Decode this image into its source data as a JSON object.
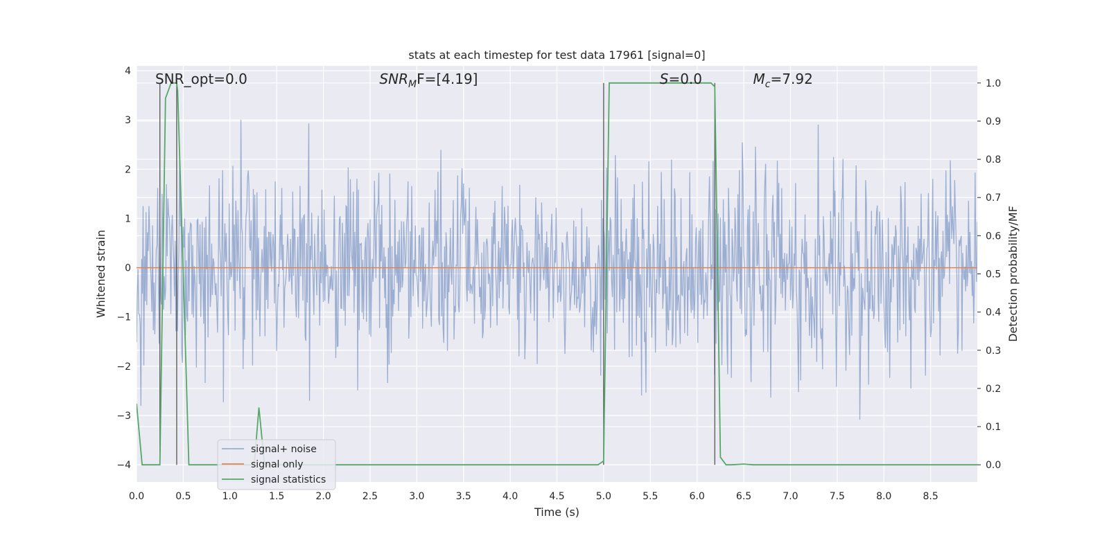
{
  "chart_data": {
    "type": "line",
    "title": "stats at each timestep for test data 17961 [signal=0]",
    "xlabel": "Time (s)",
    "ylabel": "Whitened strain",
    "ylabel_right": "Detection probability/MF",
    "xlim": [
      0.0,
      9.0
    ],
    "ylim": [
      -4.35,
      4.1
    ],
    "ylim_right": [
      -0.045,
      1.045
    ],
    "x_ticks": [
      0.0,
      0.5,
      1.0,
      1.5,
      2.0,
      2.5,
      3.0,
      3.5,
      4.0,
      4.5,
      5.0,
      5.5,
      6.0,
      6.5,
      7.0,
      7.5,
      8.0,
      8.5
    ],
    "x_tick_labels": [
      "0.0",
      "0.5",
      "1.0",
      "1.5",
      "2.0",
      "2.5",
      "3.0",
      "3.5",
      "4.0",
      "4.5",
      "5.0",
      "5.5",
      "6.0",
      "6.5",
      "7.0",
      "7.5",
      "8.0",
      "8.5"
    ],
    "y_ticks": [
      4,
      3,
      2,
      1,
      0,
      -1,
      -2,
      -3,
      -4
    ],
    "y_tick_labels": [
      "4",
      "3",
      "2",
      "1",
      "0",
      "−1",
      "−2",
      "−3",
      "−4"
    ],
    "y_right_ticks": [
      1.0,
      0.9,
      0.8,
      0.7,
      0.6,
      0.5,
      0.4,
      0.3,
      0.2,
      0.1,
      0.0
    ],
    "y_right_tick_labels": [
      "1.0",
      "0.9",
      "0.8",
      "0.7",
      "0.6",
      "0.5",
      "0.4",
      "0.3",
      "0.2",
      "0.1",
      "0.0"
    ],
    "grid": true,
    "legend_position": "lower-left",
    "annotations": [
      {
        "text": "SNR_opt=0.0",
        "x": 0.2
      },
      {
        "text": "SNR",
        "sub": "M",
        "text2": "F=[4.19]",
        "italic": true,
        "x": 2.6
      },
      {
        "text": "S",
        "text2": "=0.0",
        "italic": true,
        "x": 5.6
      },
      {
        "text": "M",
        "sub": "c",
        "text2": "=7.92",
        "italic": true,
        "x": 6.6
      }
    ],
    "vlines_right_axis": [
      {
        "x": 0.25,
        "ymin": 0.0,
        "ymax": 1.0
      },
      {
        "x": 0.43,
        "ymin": 0.0,
        "ymax": 1.0
      },
      {
        "x": 5.0,
        "ymin": 0.0,
        "ymax": 1.0
      },
      {
        "x": 6.19,
        "ymin": 0.0,
        "ymax": 1.0
      }
    ],
    "series": [
      {
        "name": "signal+ noise",
        "color": "#4c72b0",
        "alpha": 0.5,
        "axis": "left",
        "kind": "noise",
        "sample_rate": 128,
        "std": 1.0
      },
      {
        "name": "signal only",
        "color": "#dd8452",
        "axis": "left",
        "x": [
          0.0,
          9.0
        ],
        "y": [
          0.0,
          0.0
        ]
      },
      {
        "name": "signal statistics",
        "color": "#55a868",
        "axis": "right",
        "x": [
          0.0,
          0.06,
          0.12,
          0.18,
          0.24,
          0.25,
          0.31,
          0.37,
          0.43,
          0.44,
          0.5,
          0.56,
          0.62,
          1.2,
          1.26,
          1.31,
          1.37,
          1.43,
          1.49,
          4.94,
          5.0,
          5.06,
          5.12,
          6.15,
          6.19,
          6.25,
          6.31,
          6.37,
          6.5,
          6.6,
          9.0
        ],
        "y": [
          0.16,
          0.0,
          0.0,
          0.0,
          0.0,
          0.0,
          0.96,
          1.0,
          1.0,
          0.98,
          0.5,
          0.0,
          0.0,
          0.0,
          0.0,
          0.15,
          0.0,
          0.0,
          0.0,
          0.0,
          0.01,
          1.0,
          1.0,
          1.0,
          0.99,
          0.02,
          0.0,
          0.0,
          0.002,
          0.0,
          0.0
        ]
      }
    ]
  }
}
